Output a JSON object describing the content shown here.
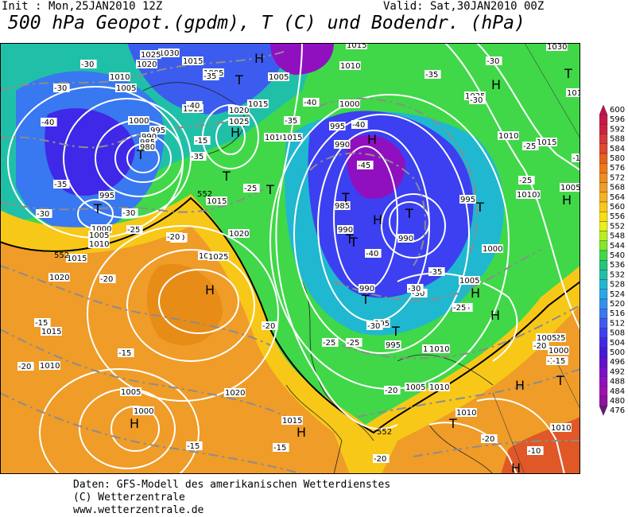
{
  "header": {
    "init": "Init : Mon,25JAN2010 12Z",
    "valid": "Valid: Sat,30JAN2010 00Z",
    "title": "500 hPa Geopot.(gpdm), T (C) und Bodendr. (hPa)"
  },
  "footer": {
    "line1": "Daten: GFS-Modell des amerikanischen Wetterdienstes",
    "line2": "(C) Wetterzentrale",
    "line3": "www.wetterzentrale.de"
  },
  "colorbar": {
    "levels": [
      "600",
      "596",
      "592",
      "588",
      "584",
      "580",
      "576",
      "572",
      "568",
      "564",
      "560",
      "556",
      "552",
      "548",
      "544",
      "540",
      "536",
      "532",
      "528",
      "524",
      "520",
      "516",
      "512",
      "508",
      "504",
      "500",
      "496",
      "492",
      "488",
      "484",
      "480",
      "476"
    ],
    "colors": [
      "#c01050",
      "#c8184a",
      "#d02040",
      "#d83838",
      "#e04830",
      "#e86020",
      "#f07818",
      "#f08c20",
      "#f09c28",
      "#f8b020",
      "#f8c818",
      "#f8e010",
      "#e8f018",
      "#b8f020",
      "#80e828",
      "#40d848",
      "#20c878",
      "#20c0a8",
      "#20b8d0",
      "#28a8e8",
      "#3090f0",
      "#3878f0",
      "#3c5cf0",
      "#3c40f0",
      "#4028e8",
      "#4818d8",
      "#6010d0",
      "#7c10c8",
      "#9010c0",
      "#a010b0",
      "#9010a0",
      "#701080"
    ]
  },
  "map": {
    "contour_labels": [
      {
        "t": "1015"
      },
      {
        "t": "1030"
      },
      {
        "t": "1025"
      },
      {
        "t": "1020"
      },
      {
        "t": "1015"
      },
      {
        "t": "1010"
      },
      {
        "t": "1005"
      },
      {
        "t": "1000"
      },
      {
        "t": "995"
      },
      {
        "t": "990"
      },
      {
        "t": "985"
      },
      {
        "t": "980"
      },
      {
        "t": "995"
      },
      {
        "t": "1000"
      },
      {
        "t": "1005"
      },
      {
        "t": "1010"
      },
      {
        "t": "1015"
      },
      {
        "t": "1020"
      },
      {
        "t": "1025"
      },
      {
        "t": "1015"
      },
      {
        "t": "1010"
      },
      {
        "t": "1015"
      },
      {
        "t": "1005"
      },
      {
        "t": "1025"
      },
      {
        "t": "1020"
      },
      {
        "t": "1015"
      },
      {
        "t": "1010"
      },
      {
        "t": "1005"
      },
      {
        "t": "1000"
      },
      {
        "t": "995"
      },
      {
        "t": "990"
      },
      {
        "t": "985"
      },
      {
        "t": "990"
      },
      {
        "t": "990"
      },
      {
        "t": "995"
      },
      {
        "t": "1000"
      },
      {
        "t": "990"
      },
      {
        "t": "995"
      },
      {
        "t": "995"
      },
      {
        "t": "1000"
      },
      {
        "t": "1005"
      },
      {
        "t": "1005"
      },
      {
        "t": "1010"
      },
      {
        "t": "1025"
      },
      {
        "t": "1030"
      },
      {
        "t": "1025"
      },
      {
        "t": "1010"
      },
      {
        "t": "1020"
      },
      {
        "t": "1015"
      },
      {
        "t": "1020"
      },
      {
        "t": "1025"
      },
      {
        "t": "1015"
      },
      {
        "t": "1010"
      },
      {
        "t": "1005"
      },
      {
        "t": "1000"
      },
      {
        "t": "1020"
      },
      {
        "t": "1015"
      },
      {
        "t": "1010"
      },
      {
        "t": "1005"
      },
      {
        "t": "1010"
      },
      {
        "t": "1010"
      },
      {
        "t": "1015"
      },
      {
        "t": "1010"
      },
      {
        "t": "1005"
      },
      {
        "t": "1000"
      },
      {
        "t": "1010"
      },
      {
        "t": "1010"
      }
    ],
    "temp_labels": [
      {
        "t": "-30"
      },
      {
        "t": "-35"
      },
      {
        "t": "-40"
      },
      {
        "t": "-40"
      },
      {
        "t": "-30"
      },
      {
        "t": "-35"
      },
      {
        "t": "-15"
      },
      {
        "t": "-35"
      },
      {
        "t": "-30"
      },
      {
        "t": "-30"
      },
      {
        "t": "-25"
      },
      {
        "t": "-20"
      },
      {
        "t": "-20"
      },
      {
        "t": "-25"
      },
      {
        "t": "-20"
      },
      {
        "t": "-35"
      },
      {
        "t": "-40"
      },
      {
        "t": "-40"
      },
      {
        "t": "-45"
      },
      {
        "t": "-40"
      },
      {
        "t": "-35"
      },
      {
        "t": "-30"
      },
      {
        "t": "-35"
      },
      {
        "t": "-30"
      },
      {
        "t": "-30"
      },
      {
        "t": "-25"
      },
      {
        "t": "-25"
      },
      {
        "t": "-30"
      },
      {
        "t": "-25"
      },
      {
        "t": "-25"
      },
      {
        "t": "-20"
      },
      {
        "t": "-20"
      },
      {
        "t": "-15"
      },
      {
        "t": "-15"
      },
      {
        "t": "-20"
      },
      {
        "t": "-20"
      },
      {
        "t": "-15"
      },
      {
        "t": "-15"
      },
      {
        "t": "-15"
      },
      {
        "t": "-10"
      },
      {
        "t": "-20"
      },
      {
        "t": "-20"
      },
      {
        "t": "-15"
      },
      {
        "t": "-20"
      },
      {
        "t": "-25"
      },
      {
        "t": "-30"
      },
      {
        "t": "-25"
      },
      {
        "t": "-15"
      }
    ],
    "highs_lows": [
      {
        "t": "H"
      },
      {
        "t": "H"
      },
      {
        "t": "T"
      },
      {
        "t": "T"
      },
      {
        "t": "H"
      },
      {
        "t": "H"
      },
      {
        "t": "T"
      },
      {
        "t": "T"
      },
      {
        "t": "T"
      },
      {
        "t": "H"
      },
      {
        "t": "H"
      },
      {
        "t": "H"
      },
      {
        "t": "T"
      },
      {
        "t": "T"
      },
      {
        "t": "T"
      },
      {
        "t": "T"
      },
      {
        "t": "H"
      },
      {
        "t": "T"
      },
      {
        "t": "T"
      },
      {
        "t": "T"
      },
      {
        "t": "H"
      },
      {
        "t": "T"
      },
      {
        "t": "T"
      },
      {
        "t": "H"
      },
      {
        "t": "H"
      },
      {
        "t": "H"
      },
      {
        "t": "T"
      },
      {
        "t": "H"
      }
    ],
    "geopot_labels": [
      {
        "t": "552"
      },
      {
        "t": "552"
      },
      {
        "t": "552"
      }
    ]
  }
}
